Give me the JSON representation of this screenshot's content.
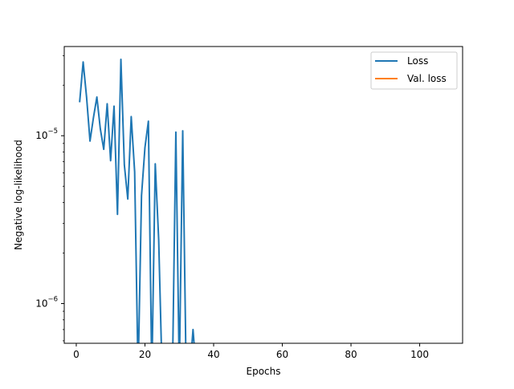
{
  "chart_data": {
    "type": "line",
    "title": "",
    "xlabel": "Epochs",
    "ylabel": "Negative log-likelihood",
    "xscale": "linear",
    "yscale": "log",
    "xlim": [
      -3.5,
      112.5
    ],
    "ylim": [
      5.8e-07,
      3.4e-05
    ],
    "xticks": [
      0,
      20,
      40,
      60,
      80,
      100
    ],
    "xtick_labels": [
      "0",
      "20",
      "40",
      "60",
      "80",
      "100"
    ],
    "yticks_major": [
      1e-06,
      1e-05
    ],
    "ytick_labels": [
      {
        "base": "10",
        "exp": "−6"
      },
      {
        "base": "10",
        "exp": "−5"
      }
    ],
    "yticks_minor": [
      6e-07,
      7e-07,
      8e-07,
      9e-07,
      2e-06,
      3e-06,
      4e-06,
      5e-06,
      6e-06,
      7e-06,
      8e-06,
      9e-06,
      2e-05,
      3e-05
    ],
    "grid": false,
    "legend_position": "top-right",
    "colors": {
      "Loss": "#1f77b4",
      "Val. loss": "#ff7f0e"
    },
    "series": [
      {
        "name": "Loss",
        "x": [
          1,
          2,
          3,
          4,
          5,
          6,
          7,
          8,
          9,
          10,
          11,
          12,
          13,
          14,
          15,
          16,
          17,
          18,
          19,
          20,
          21,
          22,
          23,
          24,
          25,
          26,
          27,
          28,
          29,
          30,
          31,
          32,
          33,
          34,
          35
        ],
        "y": [
          1.6e-05,
          2.75e-05,
          1.7e-05,
          9.3e-06,
          1.28e-05,
          1.7e-05,
          1.1e-05,
          8.3e-06,
          1.55e-05,
          7.1e-06,
          1.5e-05,
          3.4e-06,
          2.85e-05,
          6.7e-06,
          4.2e-06,
          1.3e-05,
          6.1e-06,
          0,
          4.4e-06,
          8.5e-06,
          1.22e-05,
          0,
          6.8e-06,
          2.4e-06,
          0,
          0,
          0,
          0,
          1.05e-05,
          0,
          1.07e-05,
          0,
          0,
          7e-07,
          0
        ]
      },
      {
        "name": "Val. loss",
        "x": [],
        "y": []
      }
    ]
  }
}
